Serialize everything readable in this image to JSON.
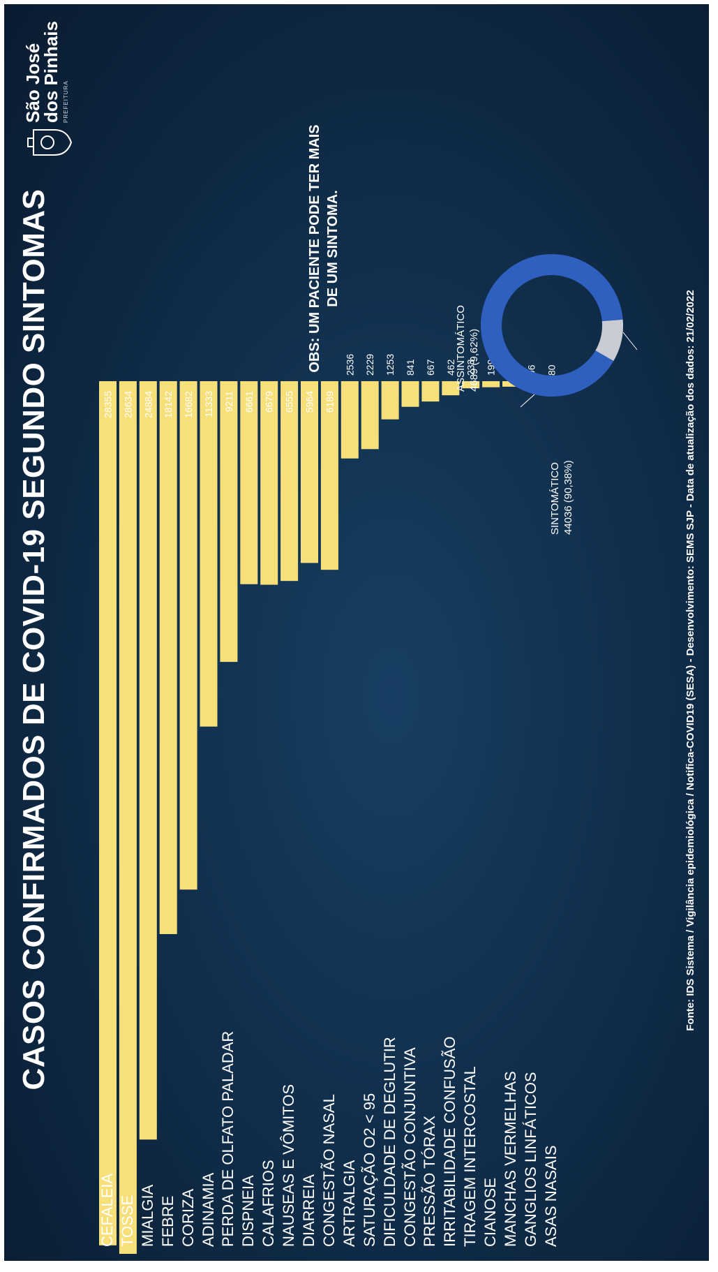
{
  "title": "CASOS CONFIRMADOS DE COVID-19 SEGUNDO SINTOMAS",
  "logo": {
    "line1": "São José",
    "line2": "dos Pinhais",
    "sub": "PREFEITURA"
  },
  "note": "OBS: UM PACIENTE PODE TER MAIS DE UM SINTOMA.",
  "footer": "Fonte: IDS Sistema / Vigilância epidemiológica / Notifica-COVID19 (SESA) - Desenvolvimento: SEMS SJP - Data de atualização dos dados: 21/02/2022",
  "colors": {
    "bar": "#f7e07a",
    "sintomatico": "#2f5fbf",
    "assintomatico": "#c9cdd3"
  },
  "chart_data": [
    {
      "type": "bar",
      "title": "CASOS CONFIRMADOS DE COVID-19 SEGUNDO SINTOMAS",
      "categories": [
        "CEFALEIA",
        "TOSSE",
        "MIALGIA",
        "FEBRE",
        "CORIZA",
        "ADINAMIA",
        "PERDA DE OLFATO PALADAR",
        "DISPNEIA",
        "CALAFRIOS",
        "NAUSEAS E VÔMITOS",
        "DIARREIA",
        "CONGESTÃO NASAL",
        "ARTRALGIA",
        "SATURAÇÃO O2 < 95",
        "DIFICULDADE DE DEGLUTIR",
        "CONGESTÃO CONJUNTIVA",
        "PRESSÃO TÓRAX",
        "IRRITABILIDADE CONFUSÃO",
        "TIRAGEM INTERCOSTAL",
        "CIANOSE",
        "MANCHAS VERMELHAS",
        "GANGLIOS LINFÁTICOS",
        "ASAS NASAIS"
      ],
      "values": [
        28355,
        28634,
        24884,
        18142,
        16682,
        11333,
        9211,
        6661,
        6679,
        6555,
        5964,
        6189,
        2536,
        2229,
        1253,
        841,
        667,
        462,
        233,
        199,
        182,
        96,
        80
      ],
      "value_labels": [
        "28355",
        "28634",
        "24884",
        "18142",
        "16682",
        "11333",
        "9211",
        "6661",
        "6679",
        "6555",
        "5964",
        "6189",
        "2536",
        "2229",
        "1253",
        "841",
        "667",
        "462",
        "233",
        "199",
        "182",
        "96",
        "80"
      ]
    },
    {
      "type": "pie",
      "slices": [
        {
          "label": "SINTOMÁTICO",
          "value": 44036,
          "text": "44036 (90,38%)"
        },
        {
          "label": "ASSINTOMÁTICO",
          "value": 4689,
          "text": "4689 (9,62%)"
        }
      ]
    }
  ]
}
